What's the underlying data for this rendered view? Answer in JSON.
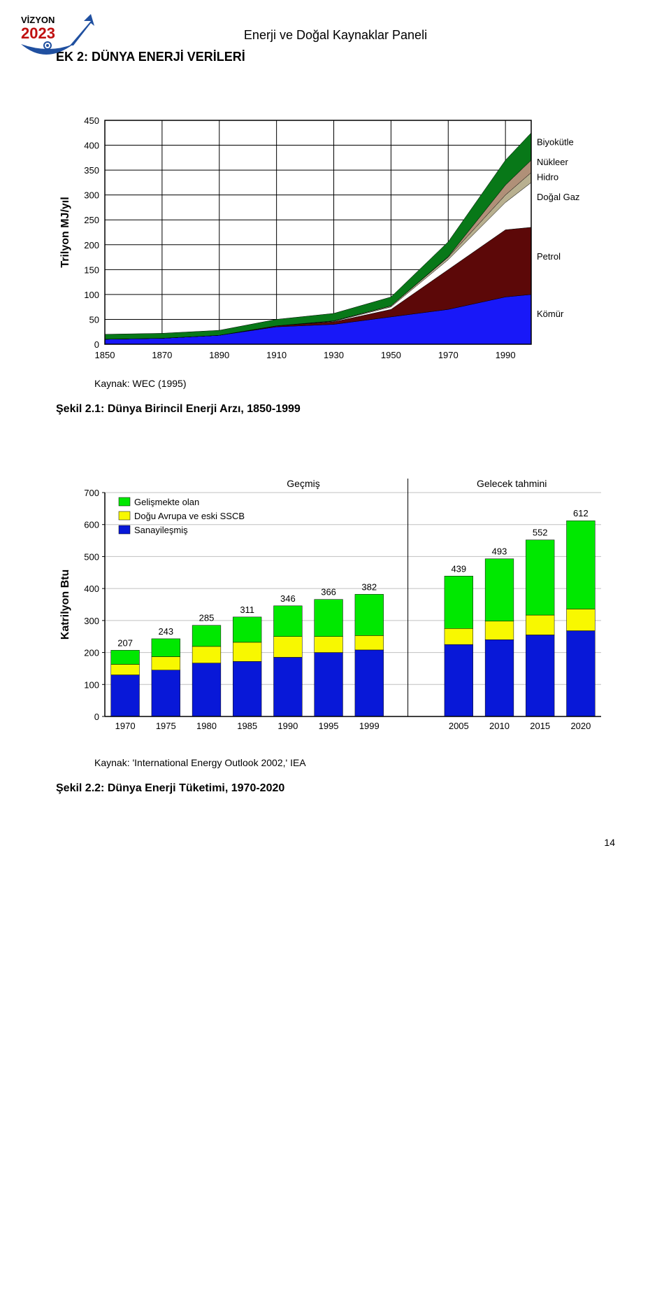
{
  "header": {
    "title": "Enerji ve Doğal Kaynaklar Paneli",
    "logo_top": "VİZYON",
    "logo_year": "2023"
  },
  "section_title": "EK 2: DÜNYA ENERJİ VERİLERİ",
  "chart1": {
    "type": "area",
    "ylabel": "Trilyon MJ/yıl",
    "ylabel_fontsize": 16,
    "label_fontsize": 13,
    "x_ticks": [
      "1850",
      "1870",
      "1890",
      "1910",
      "1930",
      "1950",
      "1970",
      "1990"
    ],
    "y_ticks": [
      "0",
      "50",
      "100",
      "150",
      "200",
      "250",
      "300",
      "350",
      "400",
      "450"
    ],
    "ylim": [
      0,
      450
    ],
    "xlim": [
      1850,
      1999
    ],
    "grid_color": "#000000",
    "background_color": "#ffffff",
    "plot_border_color": "#000000",
    "series_labels": {
      "biomass": "Biyokütle",
      "nuclear": "Nükleer",
      "hydro": "Hidro",
      "gas": "Doğal Gaz",
      "oil": "Petrol",
      "coal": "Kömür"
    },
    "series_colors": {
      "coal": "#1818f8",
      "oil": "#5c0808",
      "gas": "#ffffff",
      "hydro": "#b8b090",
      "nuclear": "#b09078",
      "biomass": "#087818"
    },
    "source": "Kaynak: WEC (1995)",
    "series_top": {
      "x": [
        1850,
        1870,
        1890,
        1910,
        1930,
        1950,
        1970,
        1990,
        1999
      ],
      "coal": [
        10,
        12,
        18,
        35,
        40,
        55,
        70,
        95,
        100
      ],
      "oil": [
        10,
        12,
        18,
        37,
        45,
        70,
        150,
        230,
        235
      ],
      "gas": [
        10,
        12,
        18,
        37,
        46,
        75,
        170,
        285,
        325
      ],
      "hydro": [
        10,
        12,
        18,
        37,
        47,
        77,
        175,
        300,
        345
      ],
      "nuclear": [
        10,
        12,
        18,
        37,
        47,
        77,
        176,
        320,
        370
      ],
      "biomass": [
        20,
        22,
        28,
        50,
        62,
        95,
        206,
        370,
        425
      ]
    },
    "caption": "Şekil 2.1: Dünya Birincil Enerji Arzı, 1850-1999"
  },
  "chart2": {
    "type": "bar",
    "ylabel": "Katrilyon Btu",
    "ylabel_fontsize": 16,
    "label_fontsize": 13,
    "x_ticks": [
      "1970",
      "1975",
      "1980",
      "1985",
      "1990",
      "1995",
      "1999",
      "2005",
      "2010",
      "2015",
      "2020"
    ],
    "y_ticks": [
      "0",
      "100",
      "200",
      "300",
      "400",
      "500",
      "600",
      "700"
    ],
    "ylim": [
      0,
      700
    ],
    "grid_color": "#c0c0c0",
    "background_color": "#ffffff",
    "legend": [
      {
        "label": "Gelişmekte olan",
        "color": "#00e800"
      },
      {
        "label": "Doğu Avrupa ve eski SSCB",
        "color": "#f8f800"
      },
      {
        "label": "Sanayileşmiş",
        "color": "#0818d8"
      }
    ],
    "section_labels": {
      "past": "Geçmiş",
      "future": "Gelecek tahmini"
    },
    "bars": [
      {
        "x": "1970",
        "total": 207,
        "ind": 130,
        "eeur": 33,
        "dev": 44
      },
      {
        "x": "1975",
        "total": 243,
        "ind": 145,
        "eeur": 42,
        "dev": 56
      },
      {
        "x": "1980",
        "total": 285,
        "ind": 167,
        "eeur": 52,
        "dev": 66
      },
      {
        "x": "1985",
        "total": 311,
        "ind": 172,
        "eeur": 60,
        "dev": 79
      },
      {
        "x": "1990",
        "total": 346,
        "ind": 185,
        "eeur": 65,
        "dev": 96
      },
      {
        "x": "1995",
        "total": 366,
        "ind": 200,
        "eeur": 50,
        "dev": 116
      },
      {
        "x": "1999",
        "total": 382,
        "ind": 208,
        "eeur": 45,
        "dev": 129
      },
      {
        "x": "2005",
        "total": 439,
        "ind": 225,
        "eeur": 50,
        "dev": 164
      },
      {
        "x": "2010",
        "total": 493,
        "ind": 240,
        "eeur": 58,
        "dev": 195
      },
      {
        "x": "2015",
        "total": 552,
        "ind": 255,
        "eeur": 62,
        "dev": 235
      },
      {
        "x": "2020",
        "total": 612,
        "ind": 268,
        "eeur": 68,
        "dev": 276
      }
    ],
    "bar_colors": {
      "ind": "#0818d8",
      "eeur": "#f8f800",
      "dev": "#00e800"
    },
    "source": "Kaynak: 'International Energy Outlook 2002,' IEA",
    "caption": "Şekil 2.2: Dünya Enerji Tüketimi, 1970-2020"
  },
  "page_number": "14"
}
